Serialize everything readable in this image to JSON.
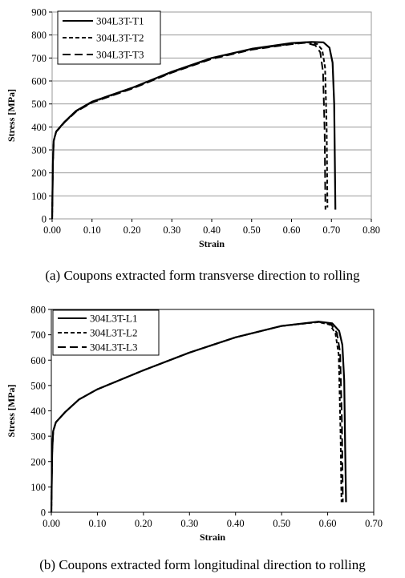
{
  "chart_data": [
    {
      "type": "line",
      "xlabel": "Strain",
      "ylabel": "Stress [MPa]",
      "xlim": [
        0,
        0.8
      ],
      "ylim": [
        0,
        900
      ],
      "xticks": [
        "0.00",
        "0.10",
        "0.20",
        "0.30",
        "0.40",
        "0.50",
        "0.60",
        "0.70",
        "0.80"
      ],
      "yticks": [
        "0",
        "100",
        "200",
        "300",
        "400",
        "500",
        "600",
        "700",
        "800",
        "900"
      ],
      "grid": "horizontal",
      "legend_position": "top-left",
      "caption": "(a) Coupons extracted form transverse direction to rolling",
      "series": [
        {
          "name": "304L3T-T1",
          "style": "solid",
          "x": [
            0,
            0.002,
            0.004,
            0.01,
            0.03,
            0.06,
            0.1,
            0.2,
            0.3,
            0.4,
            0.5,
            0.6,
            0.65,
            0.68,
            0.695,
            0.703,
            0.707,
            0.709,
            0.71
          ],
          "y": [
            0,
            250,
            340,
            380,
            420,
            470,
            510,
            570,
            640,
            700,
            740,
            765,
            770,
            768,
            745,
            680,
            500,
            200,
            40
          ]
        },
        {
          "name": "304L3T-T2",
          "style": "short-dash",
          "x": [
            0,
            0.002,
            0.004,
            0.01,
            0.03,
            0.06,
            0.1,
            0.2,
            0.3,
            0.4,
            0.5,
            0.6,
            0.64,
            0.665,
            0.677,
            0.684,
            0.688,
            0.69
          ],
          "y": [
            0,
            250,
            340,
            378,
            418,
            468,
            508,
            568,
            638,
            698,
            738,
            762,
            768,
            760,
            735,
            660,
            400,
            50
          ]
        },
        {
          "name": "304L3T-T3",
          "style": "long-dash",
          "x": [
            0,
            0.002,
            0.004,
            0.01,
            0.03,
            0.06,
            0.1,
            0.2,
            0.3,
            0.4,
            0.5,
            0.6,
            0.635,
            0.66,
            0.672,
            0.679,
            0.683,
            0.685
          ],
          "y": [
            0,
            250,
            340,
            378,
            418,
            466,
            506,
            566,
            636,
            696,
            736,
            760,
            766,
            755,
            725,
            640,
            380,
            40
          ]
        }
      ]
    },
    {
      "type": "line",
      "xlabel": "Strain",
      "ylabel": "Stress [MPa]",
      "xlim": [
        0,
        0.7
      ],
      "ylim": [
        0,
        800
      ],
      "xticks": [
        "0.00",
        "0.10",
        "0.20",
        "0.30",
        "0.40",
        "0.50",
        "0.60",
        "0.70"
      ],
      "yticks": [
        "0",
        "100",
        "200",
        "300",
        "400",
        "500",
        "600",
        "700",
        "800"
      ],
      "grid": "none",
      "legend_position": "top-left",
      "caption": "(b) Coupons extracted form longitudinal direction to rolling",
      "series": [
        {
          "name": "304L3T-L1",
          "style": "solid",
          "x": [
            0,
            0.002,
            0.004,
            0.01,
            0.03,
            0.06,
            0.1,
            0.2,
            0.3,
            0.4,
            0.5,
            0.58,
            0.61,
            0.625,
            0.632,
            0.636,
            0.638,
            0.64
          ],
          "y": [
            0,
            240,
            320,
            355,
            395,
            445,
            485,
            560,
            630,
            690,
            735,
            752,
            745,
            715,
            660,
            520,
            250,
            40
          ]
        },
        {
          "name": "304L3T-L2",
          "style": "short-dash",
          "x": [
            0,
            0.002,
            0.004,
            0.01,
            0.03,
            0.06,
            0.1,
            0.2,
            0.3,
            0.4,
            0.5,
            0.58,
            0.605,
            0.617,
            0.624,
            0.628,
            0.63
          ],
          "y": [
            0,
            240,
            320,
            355,
            395,
            445,
            485,
            560,
            630,
            690,
            735,
            750,
            740,
            705,
            620,
            300,
            40
          ]
        },
        {
          "name": "304L3T-L3",
          "style": "long-dash",
          "x": [
            0,
            0.002,
            0.004,
            0.01,
            0.03,
            0.06,
            0.1,
            0.2,
            0.3,
            0.4,
            0.5,
            0.58,
            0.607,
            0.62,
            0.627,
            0.631,
            0.633
          ],
          "y": [
            0,
            240,
            320,
            355,
            395,
            445,
            485,
            560,
            630,
            690,
            735,
            751,
            742,
            708,
            630,
            350,
            40
          ]
        }
      ]
    }
  ]
}
